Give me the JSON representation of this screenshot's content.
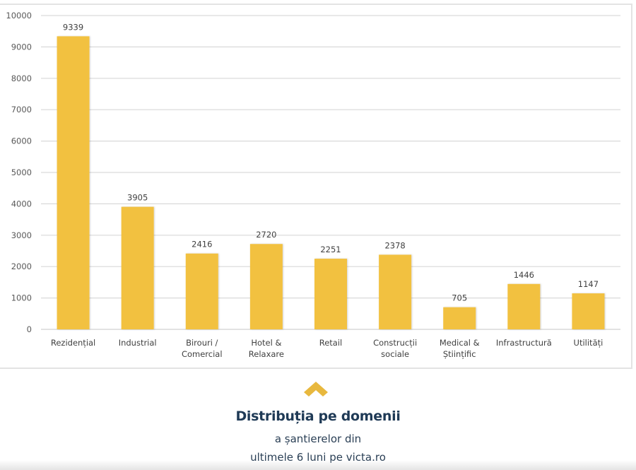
{
  "chart_data": {
    "type": "bar",
    "title": "",
    "xlabel": "",
    "ylabel": "",
    "ylim": [
      0,
      10000
    ],
    "yticks": [
      "0",
      "1000",
      "2000",
      "3000",
      "4000",
      "5000",
      "6000",
      "7000",
      "8000",
      "9000",
      "10000"
    ],
    "grid": true,
    "legend": "none",
    "categories": [
      [
        "Rezidențial"
      ],
      [
        "Industrial"
      ],
      [
        "Birouri /",
        "Comercial"
      ],
      [
        "Hotel &",
        "Relaxare"
      ],
      [
        "Retail"
      ],
      [
        "Construcții",
        "sociale"
      ],
      [
        "Medical &",
        "Științific"
      ],
      [
        "Infrastructură"
      ],
      [
        "Utilități"
      ]
    ],
    "values": [
      9339,
      3905,
      2416,
      2720,
      2251,
      2378,
      705,
      1446,
      1147
    ],
    "value_labels": [
      "9339",
      "3905",
      "2416",
      "2720",
      "2251",
      "2378",
      "705",
      "1446",
      "1147"
    ],
    "bar_color": "#f2c141",
    "gridline_color": "#d9d9d9"
  },
  "caption": {
    "icon": "chevron-up-icon",
    "icon_color": "#e8b83e",
    "title": "Distribuția pe domenii",
    "line1": "a șantierelor din",
    "line2": "ultimele 6 luni pe victa.ro"
  }
}
